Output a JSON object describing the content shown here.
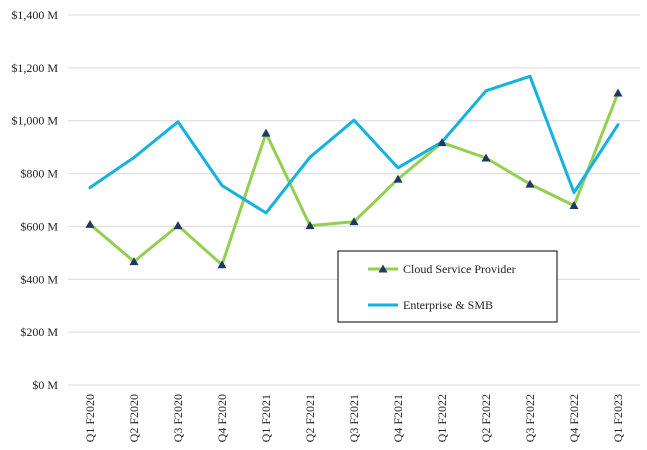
{
  "chart_data": {
    "type": "line",
    "categories": [
      "Q1 F2020",
      "Q2 F2020",
      "Q3 F2020",
      "Q4 F2020",
      "Q1 F2021",
      "Q2 F2021",
      "Q3 F2021",
      "Q4 F2021",
      "Q1 F2022",
      "Q2 F2022",
      "Q3 F2022",
      "Q4 F2022",
      "Q1 F2023"
    ],
    "series": [
      {
        "name": "Cloud Service Provider",
        "values": [
          608,
          467,
          603,
          455,
          953,
          603,
          618,
          779,
          917,
          859,
          760,
          679,
          1105
        ],
        "color": "#92d050",
        "marker": "triangle",
        "marker_color": "#1f3864"
      },
      {
        "name": "Enterprise & SMB",
        "values": [
          747,
          861,
          996,
          755,
          651,
          862,
          1002,
          822,
          920,
          1113,
          1168,
          728,
          985
        ],
        "color": "#13b2e0",
        "marker": "none"
      }
    ],
    "yticks": [
      "$0 M",
      "$200 M",
      "$400 M",
      "$600 M",
      "$800 M",
      "$1,000 M",
      "$1,200 M",
      "$1,400 M"
    ],
    "ylim": [
      0,
      1400
    ],
    "ytick_step": 200,
    "grid": true,
    "legend_placement": "center-right",
    "title": "",
    "xlabel": "",
    "ylabel": ""
  }
}
